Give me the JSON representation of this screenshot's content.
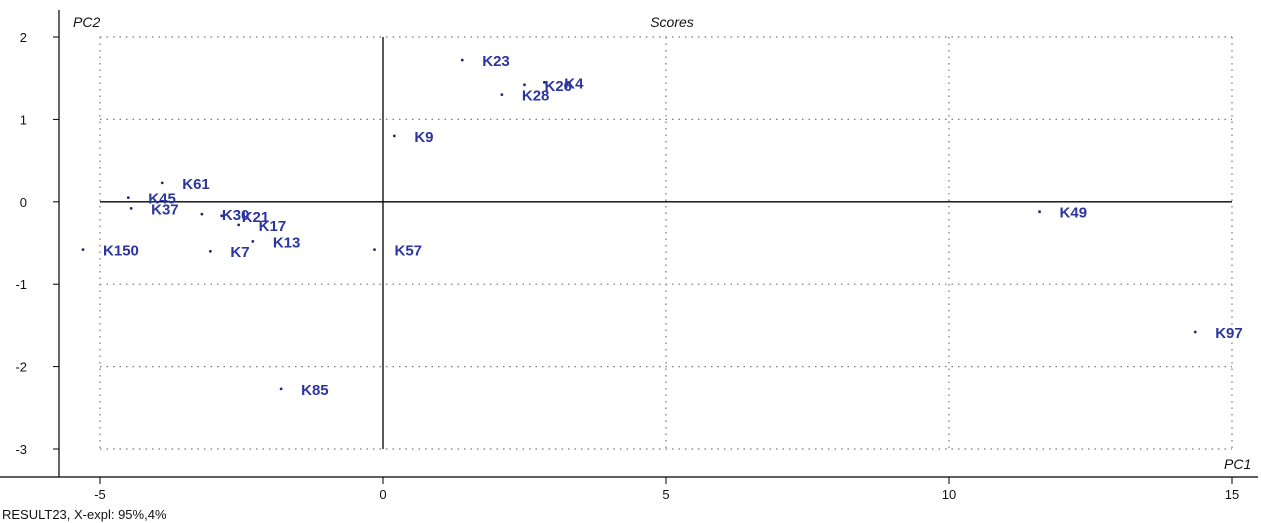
{
  "chart_data": {
    "type": "scatter",
    "title": "Scores",
    "xlabel": "PC1",
    "ylabel": "PC2",
    "xlim": [
      -5.7,
      15.2
    ],
    "ylim": [
      -3.3,
      2.2
    ],
    "xticks": [
      -5,
      0,
      5,
      10,
      15
    ],
    "yticks": [
      -3,
      -2,
      -1,
      0,
      1,
      2
    ],
    "grid": true,
    "points": [
      {
        "label": "K23",
        "x": 1.4,
        "y": 1.72
      },
      {
        "label": "K26",
        "x": 2.5,
        "y": 1.42
      },
      {
        "label": "K4",
        "x": 2.85,
        "y": 1.45
      },
      {
        "label": "K28",
        "x": 2.1,
        "y": 1.3
      },
      {
        "label": "K9",
        "x": 0.2,
        "y": 0.8
      },
      {
        "label": "K61",
        "x": -3.9,
        "y": 0.23
      },
      {
        "label": "K45",
        "x": -4.5,
        "y": 0.05
      },
      {
        "label": "K37",
        "x": -4.45,
        "y": -0.08
      },
      {
        "label": "K30",
        "x": -3.2,
        "y": -0.15
      },
      {
        "label": "K21",
        "x": -2.85,
        "y": -0.17
      },
      {
        "label": "K17",
        "x": -2.55,
        "y": -0.28
      },
      {
        "label": "K13",
        "x": -2.3,
        "y": -0.48
      },
      {
        "label": "K7",
        "x": -3.05,
        "y": -0.6
      },
      {
        "label": "K150",
        "x": -5.3,
        "y": -0.58
      },
      {
        "label": "K57",
        "x": -0.15,
        "y": -0.58
      },
      {
        "label": "K85",
        "x": -1.8,
        "y": -2.27
      },
      {
        "label": "K49",
        "x": 11.6,
        "y": -0.12
      },
      {
        "label": "K97",
        "x": 14.35,
        "y": -1.58
      }
    ]
  },
  "footer": {
    "text": "RESULT23, X-expl: 95%,4%"
  }
}
